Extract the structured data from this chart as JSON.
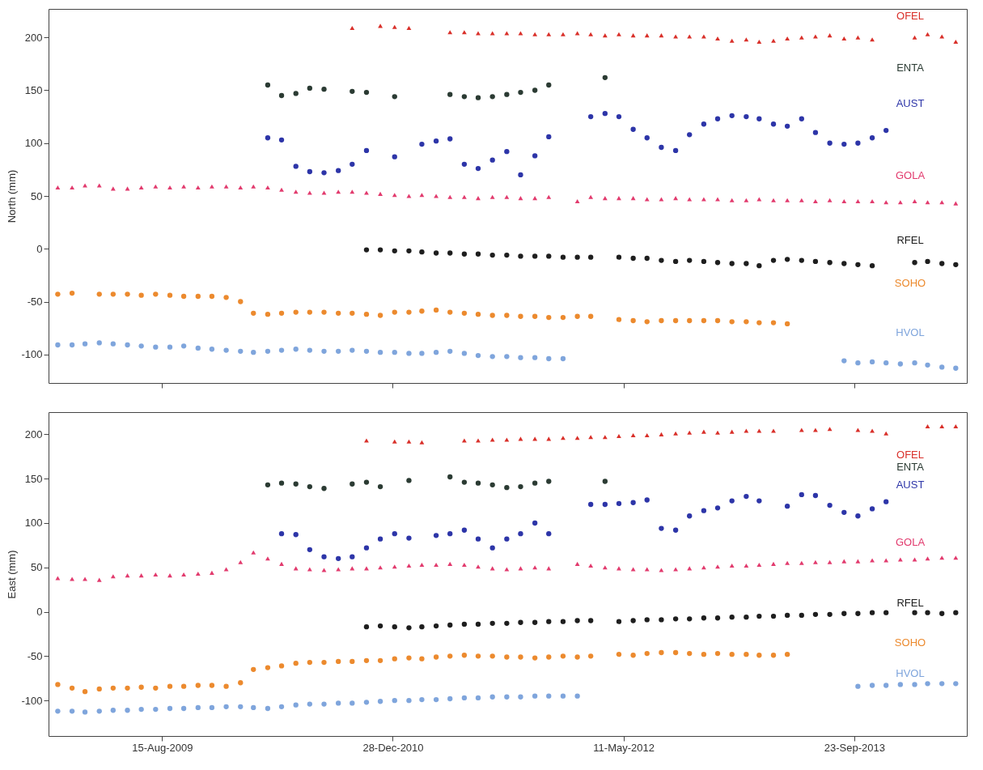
{
  "chart_data": [
    {
      "type": "scatter",
      "ylabel": "North (mm)",
      "marker": "circle",
      "tick_labels": "y",
      "x": [
        "2009-01",
        "2009-02",
        "2009-03",
        "2009-04",
        "2009-05",
        "2009-06",
        "2009-07",
        "2009-08",
        "2009-09",
        "2009-10",
        "2009-11",
        "2009-12",
        "2010-01",
        "2010-02",
        "2010-03",
        "2010-04",
        "2010-05",
        "2010-06",
        "2010-07",
        "2010-08",
        "2010-09",
        "2010-10",
        "2010-11",
        "2010-12",
        "2011-01",
        "2011-02",
        "2011-03",
        "2011-04",
        "2011-05",
        "2011-06",
        "2011-07",
        "2011-08",
        "2011-09",
        "2011-10",
        "2011-11",
        "2011-12",
        "2012-01",
        "2012-02",
        "2012-03",
        "2012-04",
        "2012-05",
        "2012-06",
        "2012-07",
        "2012-08",
        "2012-09",
        "2012-10",
        "2012-11",
        "2012-12",
        "2013-01",
        "2013-02",
        "2013-03",
        "2013-04",
        "2013-05",
        "2013-06",
        "2013-07",
        "2013-08",
        "2013-09",
        "2013-10",
        "2013-11",
        "2013-12",
        "2014-01",
        "2014-02",
        "2014-03",
        "2014-04",
        "2014-05"
      ],
      "xlim": [
        "2008-12-12",
        "2014-05-25"
      ],
      "xticks": [
        {
          "value": "2009-08-15",
          "label": null
        },
        {
          "value": "2010-12-28",
          "label": null
        },
        {
          "value": "2012-05-11",
          "label": null
        },
        {
          "value": "2013-09-23",
          "label": null
        }
      ],
      "ylim": [
        -127,
        227
      ],
      "yticks": [
        -100,
        -50,
        0,
        50,
        100,
        150,
        200
      ],
      "series": [
        {
          "name": "OFEL",
          "color": "#d9302a",
          "marker": "triangle",
          "values": [
            null,
            null,
            null,
            null,
            null,
            null,
            null,
            null,
            null,
            null,
            null,
            null,
            null,
            null,
            null,
            null,
            null,
            null,
            null,
            null,
            null,
            209,
            null,
            211,
            210,
            209,
            null,
            null,
            205,
            205,
            204,
            204,
            204,
            204,
            203,
            203,
            203,
            204,
            203,
            202,
            203,
            202,
            202,
            202,
            201,
            201,
            201,
            199,
            197,
            198,
            196,
            197,
            199,
            200,
            201,
            202,
            199,
            200,
            198,
            null,
            null,
            200,
            203,
            201,
            196
          ]
        },
        {
          "name": "ENTA",
          "color": "#2b3b33",
          "values": [
            null,
            null,
            null,
            null,
            null,
            null,
            null,
            null,
            null,
            null,
            null,
            null,
            null,
            null,
            null,
            155,
            145,
            147,
            152,
            151,
            null,
            149,
            148,
            null,
            144,
            null,
            null,
            null,
            146,
            144,
            143,
            144,
            146,
            148,
            150,
            155,
            null,
            null,
            null,
            162,
            null,
            null,
            null,
            null,
            null,
            null,
            null,
            null,
            null,
            null,
            null,
            null,
            null,
            null,
            null,
            null,
            null,
            null,
            null,
            null,
            null,
            null,
            null,
            null,
            null
          ]
        },
        {
          "name": "AUST",
          "color": "#2d35a8",
          "values": [
            null,
            null,
            null,
            null,
            null,
            null,
            null,
            null,
            null,
            null,
            null,
            null,
            null,
            null,
            null,
            105,
            103,
            78,
            73,
            72,
            74,
            80,
            93,
            null,
            87,
            null,
            99,
            102,
            104,
            80,
            76,
            84,
            92,
            70,
            88,
            106,
            null,
            null,
            125,
            128,
            125,
            113,
            105,
            96,
            93,
            108,
            118,
            123,
            126,
            125,
            123,
            118,
            116,
            123,
            110,
            100,
            99,
            100,
            105,
            112,
            null,
            null,
            null,
            null,
            null
          ]
        },
        {
          "name": "GOLA",
          "color": "#e23b6e",
          "marker": "triangle",
          "values": [
            58,
            58,
            60,
            60,
            57,
            57,
            58,
            59,
            58,
            59,
            58,
            59,
            59,
            58,
            59,
            58,
            56,
            54,
            53,
            53,
            54,
            54,
            53,
            52,
            51,
            50,
            51,
            50,
            49,
            49,
            48,
            49,
            49,
            48,
            48,
            49,
            null,
            45,
            49,
            48,
            48,
            48,
            47,
            47,
            48,
            47,
            47,
            47,
            46,
            46,
            47,
            46,
            46,
            46,
            45,
            46,
            45,
            45,
            45,
            44,
            44,
            45,
            44,
            44,
            43
          ]
        },
        {
          "name": "RFEL",
          "color": "#1e1e1e",
          "values": [
            null,
            null,
            null,
            null,
            null,
            null,
            null,
            null,
            null,
            null,
            null,
            null,
            null,
            null,
            null,
            null,
            null,
            null,
            null,
            null,
            null,
            null,
            -1,
            -1,
            -2,
            -2,
            -3,
            -4,
            -4,
            -5,
            -5,
            -6,
            -6,
            -7,
            -7,
            -7,
            -8,
            -8,
            -8,
            null,
            -8,
            -9,
            -9,
            -11,
            -12,
            -11,
            -12,
            -13,
            -14,
            -14,
            -16,
            -11,
            -10,
            -11,
            -12,
            -13,
            -14,
            -15,
            -16,
            null,
            null,
            -13,
            -12,
            -14,
            -15
          ]
        },
        {
          "name": "SOHO",
          "color": "#ec8a2e",
          "values": [
            -43,
            -42,
            null,
            -43,
            -43,
            -43,
            -44,
            -43,
            -44,
            -45,
            -45,
            -45,
            -46,
            -50,
            -61,
            -62,
            -61,
            -60,
            -60,
            -60,
            -61,
            -61,
            -62,
            -63,
            -60,
            -60,
            -59,
            -58,
            -60,
            -61,
            -62,
            -63,
            -63,
            -64,
            -64,
            -65,
            -65,
            -64,
            -64,
            null,
            -67,
            -68,
            -69,
            -68,
            -68,
            -68,
            -68,
            -68,
            -69,
            -69,
            -70,
            -70,
            -71,
            null,
            null,
            null,
            null,
            null,
            null,
            null,
            null,
            null,
            null,
            null,
            null
          ]
        },
        {
          "name": "HVOL",
          "color": "#7fa5dc",
          "values": [
            -91,
            -91,
            -90,
            -89,
            -90,
            -91,
            -92,
            -93,
            -93,
            -92,
            -94,
            -95,
            -96,
            -97,
            -98,
            -97,
            -96,
            -95,
            -96,
            -97,
            -97,
            -96,
            -97,
            -98,
            -98,
            -99,
            -99,
            -98,
            -97,
            -99,
            -101,
            -102,
            -102,
            -103,
            -103,
            -104,
            -104,
            null,
            null,
            null,
            null,
            null,
            null,
            null,
            null,
            null,
            null,
            null,
            null,
            null,
            null,
            null,
            null,
            null,
            null,
            null,
            -106,
            -108,
            -107,
            -108,
            -109,
            -108,
            -110,
            -112,
            -113
          ]
        }
      ]
    },
    {
      "type": "scatter",
      "ylabel": "East (mm)",
      "marker": "circle",
      "x": [
        "2009-01",
        "2009-02",
        "2009-03",
        "2009-04",
        "2009-05",
        "2009-06",
        "2009-07",
        "2009-08",
        "2009-09",
        "2009-10",
        "2009-11",
        "2009-12",
        "2010-01",
        "2010-02",
        "2010-03",
        "2010-04",
        "2010-05",
        "2010-06",
        "2010-07",
        "2010-08",
        "2010-09",
        "2010-10",
        "2010-11",
        "2010-12",
        "2011-01",
        "2011-02",
        "2011-03",
        "2011-04",
        "2011-05",
        "2011-06",
        "2011-07",
        "2011-08",
        "2011-09",
        "2011-10",
        "2011-11",
        "2011-12",
        "2012-01",
        "2012-02",
        "2012-03",
        "2012-04",
        "2012-05",
        "2012-06",
        "2012-07",
        "2012-08",
        "2012-09",
        "2012-10",
        "2012-11",
        "2012-12",
        "2013-01",
        "2013-02",
        "2013-03",
        "2013-04",
        "2013-05",
        "2013-06",
        "2013-07",
        "2013-08",
        "2013-09",
        "2013-10",
        "2013-11",
        "2013-12",
        "2014-01",
        "2014-02",
        "2014-03",
        "2014-04",
        "2014-05"
      ],
      "xlim": [
        "2008-12-12",
        "2014-05-25"
      ],
      "xticks": [
        {
          "value": "2009-08-15",
          "label": "15-Aug-2009"
        },
        {
          "value": "2010-12-28",
          "label": "28-Dec-2010"
        },
        {
          "value": "2012-05-11",
          "label": "11-May-2012"
        },
        {
          "value": "2013-09-23",
          "label": "23-Sep-2013"
        }
      ],
      "ylim": [
        -140,
        225
      ],
      "yticks": [
        -100,
        -50,
        0,
        50,
        100,
        150,
        200
      ],
      "series": [
        {
          "name": "OFEL",
          "color": "#d9302a",
          "marker": "triangle",
          "values": [
            null,
            null,
            null,
            null,
            null,
            null,
            null,
            null,
            null,
            null,
            null,
            null,
            null,
            null,
            null,
            null,
            null,
            null,
            null,
            null,
            null,
            null,
            193,
            null,
            192,
            192,
            191,
            null,
            null,
            193,
            193,
            194,
            194,
            195,
            195,
            195,
            196,
            196,
            197,
            197,
            198,
            199,
            199,
            200,
            201,
            202,
            203,
            202,
            203,
            204,
            204,
            204,
            null,
            205,
            205,
            206,
            null,
            205,
            204,
            201,
            null,
            null,
            209,
            209,
            209
          ]
        },
        {
          "name": "ENTA",
          "color": "#2b3b33",
          "values": [
            null,
            null,
            null,
            null,
            null,
            null,
            null,
            null,
            null,
            null,
            null,
            null,
            null,
            null,
            null,
            143,
            145,
            144,
            141,
            139,
            null,
            144,
            146,
            141,
            null,
            148,
            null,
            null,
            152,
            146,
            145,
            143,
            140,
            141,
            145,
            147,
            null,
            null,
            null,
            147,
            null,
            null,
            null,
            null,
            null,
            null,
            null,
            null,
            null,
            null,
            null,
            null,
            null,
            null,
            null,
            null,
            null,
            null,
            null,
            null,
            null,
            null,
            null,
            null,
            null
          ]
        },
        {
          "name": "AUST",
          "color": "#2d35a8",
          "values": [
            null,
            null,
            null,
            null,
            null,
            null,
            null,
            null,
            null,
            null,
            null,
            null,
            null,
            null,
            null,
            null,
            88,
            87,
            70,
            62,
            60,
            62,
            72,
            82,
            88,
            83,
            null,
            86,
            88,
            92,
            82,
            72,
            82,
            88,
            100,
            88,
            null,
            null,
            121,
            121,
            122,
            123,
            126,
            94,
            92,
            108,
            114,
            117,
            125,
            130,
            125,
            null,
            119,
            132,
            131,
            120,
            112,
            108,
            116,
            124,
            null,
            null,
            null,
            null,
            null
          ]
        },
        {
          "name": "GOLA",
          "color": "#e23b6e",
          "marker": "triangle",
          "values": [
            38,
            37,
            37,
            36,
            40,
            41,
            41,
            42,
            41,
            42,
            43,
            44,
            48,
            56,
            67,
            60,
            54,
            49,
            48,
            47,
            48,
            49,
            49,
            50,
            51,
            52,
            53,
            53,
            54,
            53,
            51,
            49,
            48,
            49,
            50,
            49,
            null,
            54,
            52,
            50,
            49,
            48,
            48,
            47,
            48,
            49,
            50,
            51,
            52,
            52,
            53,
            54,
            55,
            55,
            56,
            56,
            57,
            57,
            58,
            58,
            59,
            59,
            60,
            61,
            61
          ]
        },
        {
          "name": "RFEL",
          "color": "#1e1e1e",
          "values": [
            null,
            null,
            null,
            null,
            null,
            null,
            null,
            null,
            null,
            null,
            null,
            null,
            null,
            null,
            null,
            null,
            null,
            null,
            null,
            null,
            null,
            null,
            -17,
            -16,
            -17,
            -18,
            -17,
            -16,
            -15,
            -14,
            -14,
            -13,
            -13,
            -12,
            -12,
            -11,
            -11,
            -10,
            -10,
            null,
            -11,
            -10,
            -9,
            -9,
            -8,
            -8,
            -7,
            -7,
            -6,
            -6,
            -5,
            -5,
            -4,
            -4,
            -3,
            -3,
            -2,
            -2,
            -1,
            -1,
            null,
            -1,
            -1,
            -2,
            -1
          ]
        },
        {
          "name": "SOHO",
          "color": "#ec8a2e",
          "values": [
            -82,
            -86,
            -90,
            -87,
            -86,
            -86,
            -85,
            -86,
            -84,
            -84,
            -83,
            -83,
            -84,
            -80,
            -65,
            -63,
            -61,
            -58,
            -57,
            -57,
            -56,
            -56,
            -55,
            -55,
            -53,
            -52,
            -53,
            -51,
            -50,
            -49,
            -50,
            -50,
            -51,
            -51,
            -52,
            -51,
            -50,
            -51,
            -50,
            null,
            -48,
            -49,
            -47,
            -46,
            -46,
            -47,
            -48,
            -47,
            -48,
            -48,
            -49,
            -49,
            -48,
            null,
            null,
            null,
            null,
            null,
            null,
            null,
            null,
            null,
            null,
            null,
            null
          ]
        },
        {
          "name": "HVOL",
          "color": "#7fa5dc",
          "values": [
            -112,
            -112,
            -113,
            -112,
            -111,
            -111,
            -110,
            -110,
            -109,
            -109,
            -108,
            -108,
            -107,
            -107,
            -108,
            -109,
            -107,
            -105,
            -104,
            -104,
            -103,
            -103,
            -102,
            -101,
            -100,
            -100,
            -99,
            -99,
            -98,
            -97,
            -97,
            -96,
            -96,
            -96,
            -95,
            -95,
            -95,
            -95,
            null,
            null,
            null,
            null,
            null,
            null,
            null,
            null,
            null,
            null,
            null,
            null,
            null,
            null,
            null,
            null,
            null,
            null,
            null,
            -84,
            -83,
            -83,
            -82,
            -82,
            -81,
            -81,
            -81
          ]
        }
      ]
    }
  ]
}
